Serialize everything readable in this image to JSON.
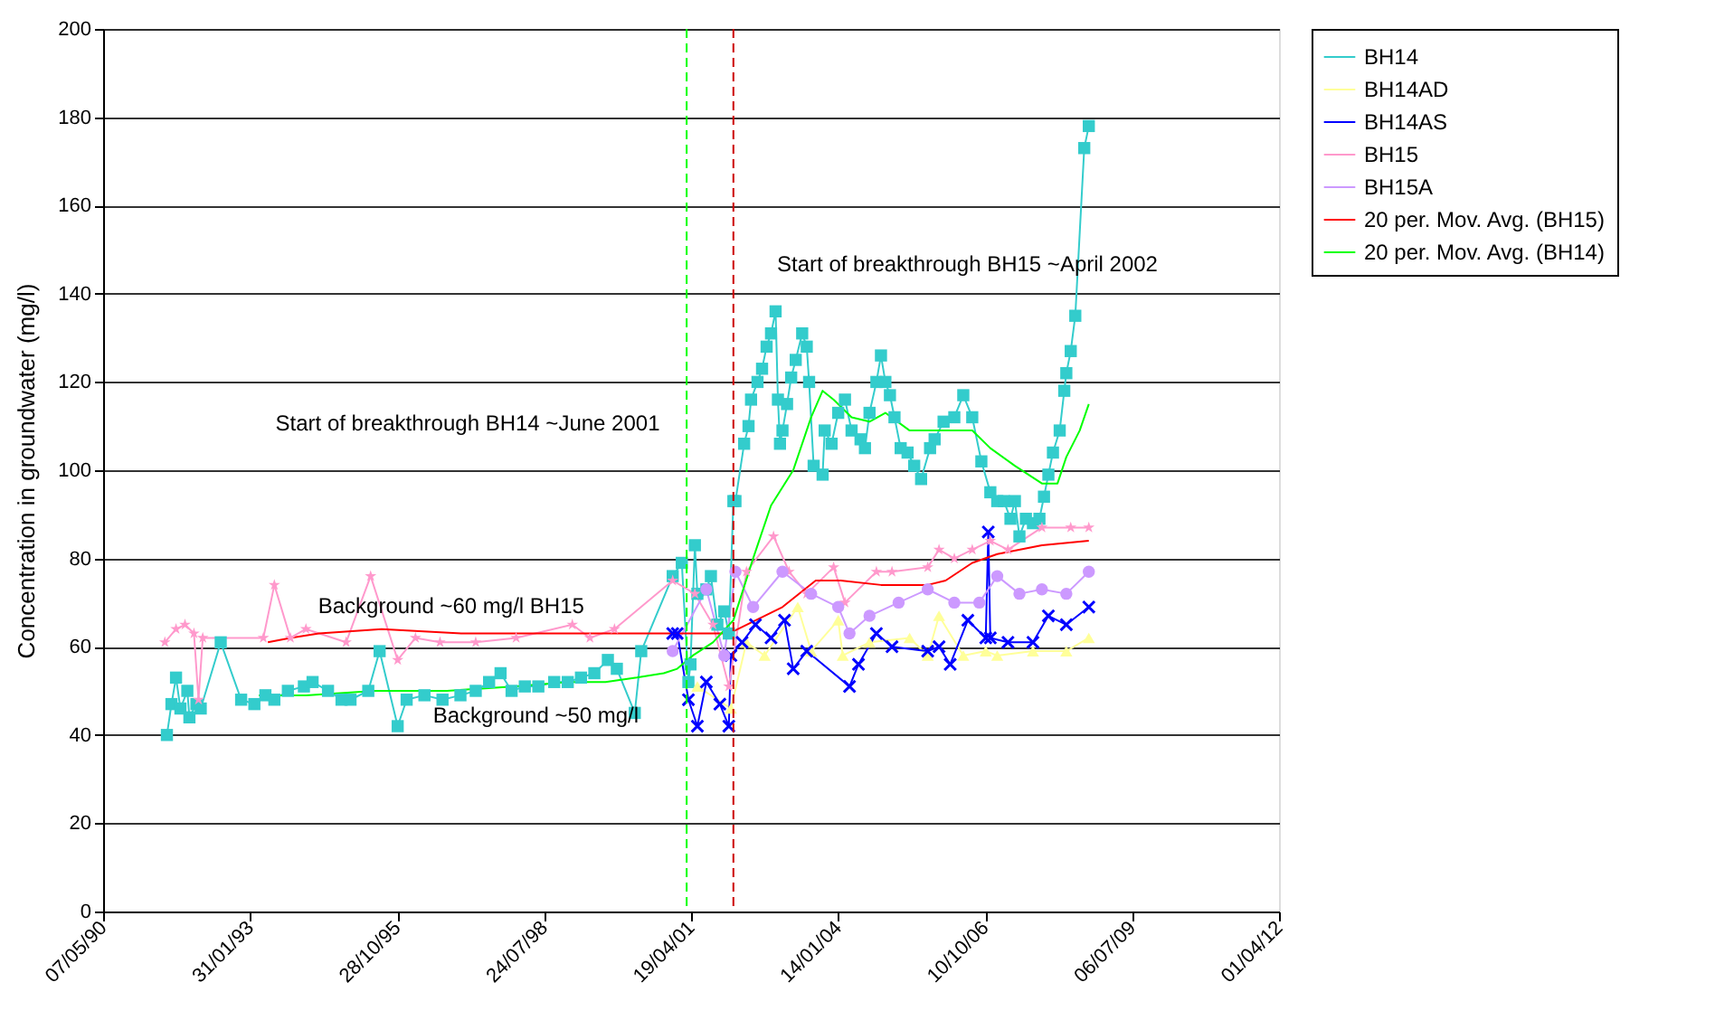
{
  "chart_data": {
    "type": "line",
    "ylabel": "Concentration in groundwater (mg/l)",
    "xlim": [
      "1990-05-07",
      "2012-04-01"
    ],
    "xticks": [
      {
        "value": "1990-05-07",
        "label": "07/05/90"
      },
      {
        "value": "1993-01-31",
        "label": "31/01/93"
      },
      {
        "value": "1995-10-28",
        "label": "28/10/95"
      },
      {
        "value": "1998-07-24",
        "label": "24/07/98"
      },
      {
        "value": "2001-04-19",
        "label": "19/04/01"
      },
      {
        "value": "2004-01-14",
        "label": "14/01/04"
      },
      {
        "value": "2006-10-10",
        "label": "10/10/06"
      },
      {
        "value": "2009-07-06",
        "label": "06/07/09"
      },
      {
        "value": "2012-04-01",
        "label": "01/04/12"
      }
    ],
    "ylim": [
      0,
      200
    ],
    "yticks": [
      0,
      20,
      40,
      60,
      80,
      100,
      120,
      140,
      160,
      180,
      200
    ],
    "grid": "y",
    "legend": "right",
    "line_style": "solid",
    "series": [
      {
        "name": "BH14",
        "color": "#33cccc",
        "marker": "square",
        "x": [
          "1991-07-15",
          "1991-08-15",
          "1991-09-15",
          "1991-10-15",
          "1991-12-01",
          "1991-12-15",
          "1992-02-01",
          "1992-03-01",
          "1992-07-15",
          "1992-12-01",
          "1993-03-01",
          "1993-05-15",
          "1993-07-15",
          "1993-10-15",
          "1994-02-01",
          "1994-04-01",
          "1994-07-15",
          "1994-10-15",
          "1994-12-15",
          "1995-04-15",
          "1995-07-01",
          "1995-11-01",
          "1996-01-01",
          "1996-05-01",
          "1996-09-01",
          "1997-01-01",
          "1997-04-15",
          "1997-07-15",
          "1997-10-01",
          "1997-12-15",
          "1998-03-15",
          "1998-06-15",
          "1998-10-01",
          "1999-01-01",
          "1999-04-01",
          "1999-07-01",
          "1999-10-01",
          "1999-12-01",
          "2000-04-01",
          "2000-05-15",
          "2000-12-15",
          "2001-02-15",
          "2001-04-01",
          "2001-04-15",
          "2001-05-15",
          "2001-06-01",
          "2001-08-01",
          "2001-09-01",
          "2001-10-15",
          "2001-12-01",
          "2002-01-01",
          "2002-02-01",
          "2002-02-15",
          "2002-04-15",
          "2002-05-15",
          "2002-06-01",
          "2002-07-15",
          "2002-08-15",
          "2002-09-15",
          "2002-10-15",
          "2002-11-15",
          "2002-12-01",
          "2002-12-15",
          "2003-01-01",
          "2003-02-01",
          "2003-03-01",
          "2003-04-01",
          "2003-05-15",
          "2003-06-15",
          "2003-07-01",
          "2003-08-01",
          "2003-10-01",
          "2003-10-15",
          "2003-12-01",
          "2004-01-15",
          "2004-03-01",
          "2004-04-15",
          "2004-06-15",
          "2004-07-15",
          "2004-08-15",
          "2004-10-01",
          "2004-11-01",
          "2004-12-01",
          "2005-01-01",
          "2005-02-01",
          "2005-03-15",
          "2005-05-01",
          "2005-06-15",
          "2005-08-01",
          "2005-10-01",
          "2005-11-01",
          "2006-01-01",
          "2006-03-15",
          "2006-05-15",
          "2006-07-15",
          "2006-09-15",
          "2006-11-15",
          "2007-01-01",
          "2007-02-15",
          "2007-04-01",
          "2007-05-01",
          "2007-06-01",
          "2007-07-15",
          "2007-09-01",
          "2007-10-15",
          "2007-11-15",
          "2007-12-15",
          "2008-01-15",
          "2008-03-01",
          "2008-04-01",
          "2008-04-15",
          "2008-05-15",
          "2008-06-15",
          "2008-08-15",
          "2008-09-15"
        ],
        "values": [
          40,
          47,
          53,
          46,
          50,
          44,
          47,
          46,
          61,
          48,
          47,
          49,
          48,
          50,
          51,
          52,
          50,
          48,
          48,
          50,
          59,
          42,
          48,
          49,
          48,
          49,
          50,
          52,
          54,
          50,
          51,
          51,
          52,
          52,
          53,
          54,
          57,
          55,
          45,
          59,
          76,
          79,
          52,
          56,
          83,
          72,
          73,
          76,
          65,
          68,
          63,
          93,
          93,
          106,
          110,
          116,
          120,
          123,
          128,
          131,
          136,
          116,
          106,
          109,
          115,
          121,
          125,
          131,
          128,
          120,
          101,
          99,
          109,
          106,
          113,
          116,
          109,
          107,
          105,
          113,
          120,
          126,
          120,
          117,
          112,
          105,
          104,
          101,
          98,
          105,
          107,
          111,
          112,
          117,
          112,
          102,
          95,
          93,
          93,
          89,
          93,
          85,
          89,
          88,
          89,
          94,
          99,
          104,
          109,
          118,
          122,
          127,
          135,
          173,
          178
        ]
      },
      {
        "name": "BH14AD",
        "color": "#ffff99",
        "marker": "triangle",
        "x": [
          "2001-06-01",
          "2002-01-15",
          "2002-05-01",
          "2002-09-01",
          "2003-04-15",
          "2003-07-15",
          "2004-01-15",
          "2004-02-15",
          "2004-08-15",
          "2005-05-15",
          "2005-09-15",
          "2005-12-01",
          "2006-05-15",
          "2006-10-15",
          "2007-01-01",
          "2007-09-01",
          "2008-04-15",
          "2008-09-15"
        ],
        "values": [
          51,
          46,
          61,
          58,
          69,
          59,
          66,
          58,
          61,
          62,
          58,
          67,
          58,
          59,
          58,
          59,
          59,
          62
        ]
      },
      {
        "name": "BH14AS",
        "color": "#0000ff",
        "marker": "cross",
        "x": [
          "2000-12-15",
          "2001-01-15",
          "2001-04-01",
          "2001-06-01",
          "2001-08-01",
          "2001-11-01",
          "2002-01-01",
          "2002-01-15",
          "2002-04-01",
          "2002-07-01",
          "2002-10-15",
          "2003-01-15",
          "2003-03-15",
          "2003-06-15",
          "2004-04-01",
          "2004-06-01",
          "2004-10-01",
          "2005-01-15",
          "2005-09-15",
          "2005-12-01",
          "2006-02-15",
          "2006-06-15",
          "2006-10-15",
          "2006-11-01",
          "2006-11-15",
          "2007-03-15",
          "2007-09-01",
          "2007-12-15",
          "2008-04-15",
          "2008-09-15"
        ],
        "values": [
          63,
          63,
          48,
          42,
          52,
          47,
          42,
          58,
          61,
          65,
          62,
          66,
          55,
          59,
          51,
          56,
          63,
          60,
          59,
          60,
          56,
          66,
          62,
          86,
          62,
          61,
          61,
          67,
          65,
          69
        ]
      },
      {
        "name": "BH15",
        "color": "#ff99cc",
        "marker": "star",
        "x": [
          "1991-07-01",
          "1991-09-15",
          "1991-11-15",
          "1992-01-15",
          "1992-02-15",
          "1992-03-15",
          "1993-05-01",
          "1993-07-15",
          "1993-11-01",
          "1994-02-15",
          "1994-11-15",
          "1995-05-01",
          "1995-11-01",
          "1996-03-01",
          "1996-08-15",
          "1997-04-15",
          "1998-01-15",
          "1999-02-01",
          "1999-06-01",
          "1999-11-15",
          "2000-12-15",
          "2001-05-15",
          "2001-09-15",
          "2002-01-01",
          "2002-05-01",
          "2002-11-01",
          "2003-02-15",
          "2003-06-15",
          "2003-12-15",
          "2004-03-01",
          "2004-10-01",
          "2005-01-15",
          "2005-09-15",
          "2005-12-01",
          "2006-03-15",
          "2006-07-15",
          "2006-11-15",
          "2007-03-15",
          "2007-11-01",
          "2008-05-15",
          "2008-09-15"
        ],
        "values": [
          61,
          64,
          65,
          63,
          48,
          62,
          62,
          74,
          62,
          64,
          61,
          76,
          57,
          62,
          61,
          61,
          62,
          65,
          62,
          64,
          75,
          72,
          65,
          51,
          77,
          85,
          77,
          72,
          78,
          70,
          77,
          77,
          78,
          82,
          80,
          82,
          84,
          82,
          87,
          87,
          87
        ]
      },
      {
        "name": "BH15A",
        "color": "#cc99ff",
        "marker": "circle",
        "x": [
          "2000-12-15",
          "2001-08-01",
          "2001-12-01",
          "2002-02-15",
          "2002-06-15",
          "2003-01-01",
          "2003-07-15",
          "2004-01-15",
          "2004-04-01",
          "2004-08-15",
          "2005-03-01",
          "2005-09-15",
          "2006-03-15",
          "2006-09-01",
          "2007-01-01",
          "2007-06-01",
          "2007-11-01",
          "2008-04-15",
          "2008-09-15"
        ],
        "values": [
          59,
          73,
          58,
          77,
          69,
          77,
          72,
          69,
          63,
          67,
          70,
          73,
          70,
          70,
          76,
          72,
          73,
          72,
          77
        ]
      },
      {
        "name": "20 per. Mov. Avg. (BH15)",
        "color": "#ff0000",
        "marker": "none",
        "x": [
          "1993-06-01",
          "1993-11-01",
          "1994-05-15",
          "1995-07-15",
          "1997-01-15",
          "1999-03-15",
          "2000-12-15",
          "2001-08-01",
          "2002-01-01",
          "2003-01-01",
          "2003-08-15",
          "2004-02-01",
          "2004-11-01",
          "2005-09-15",
          "2006-01-15",
          "2006-07-15",
          "2007-01-01",
          "2007-11-01",
          "2008-09-15"
        ],
        "values": [
          61,
          62,
          63,
          64,
          63,
          63,
          63,
          63,
          63,
          69,
          75,
          75,
          74,
          74,
          75,
          79,
          81,
          83,
          84
        ]
      },
      {
        "name": "20 per. Mov. Avg. (BH14)",
        "color": "#00ff00",
        "marker": "none",
        "x": [
          "1993-04-01",
          "1994-02-15",
          "1995-06-01",
          "1996-10-01",
          "1998-01-15",
          "1999-01-01",
          "1999-09-15",
          "2000-04-15",
          "2000-10-15",
          "2001-01-15",
          "2001-05-01",
          "2001-09-15",
          "2002-02-01",
          "2002-06-15",
          "2002-10-15",
          "2003-03-15",
          "2003-07-15",
          "2003-10-01",
          "2003-12-15",
          "2004-04-15",
          "2004-08-15",
          "2004-12-01",
          "2005-05-15",
          "2005-12-01",
          "2006-07-15",
          "2006-11-15",
          "2007-05-01",
          "2007-11-01",
          "2008-02-15",
          "2008-04-15",
          "2008-07-15",
          "2008-09-15"
        ],
        "values": [
          49,
          49,
          50,
          50,
          51,
          52,
          52,
          53,
          54,
          55,
          58,
          61,
          66,
          80,
          92,
          100,
          112,
          118,
          116,
          112,
          111,
          113,
          109,
          109,
          109,
          105,
          101,
          97,
          97,
          103,
          109,
          115
        ]
      }
    ],
    "ref_lines": [
      {
        "axis": "x",
        "value": "2001-03-20",
        "color": "#00ff00",
        "line_style": "dashed"
      },
      {
        "axis": "x",
        "value": "2002-02-01",
        "color": "#cc0000",
        "line_style": "dashed"
      }
    ],
    "annotations": [
      "Start of breakthrough BH14 ~June 2001",
      "Start of breakthrough BH15 ~April 2002",
      "Background ~60 mg/l BH15",
      "Background ~50 mg/l"
    ]
  }
}
